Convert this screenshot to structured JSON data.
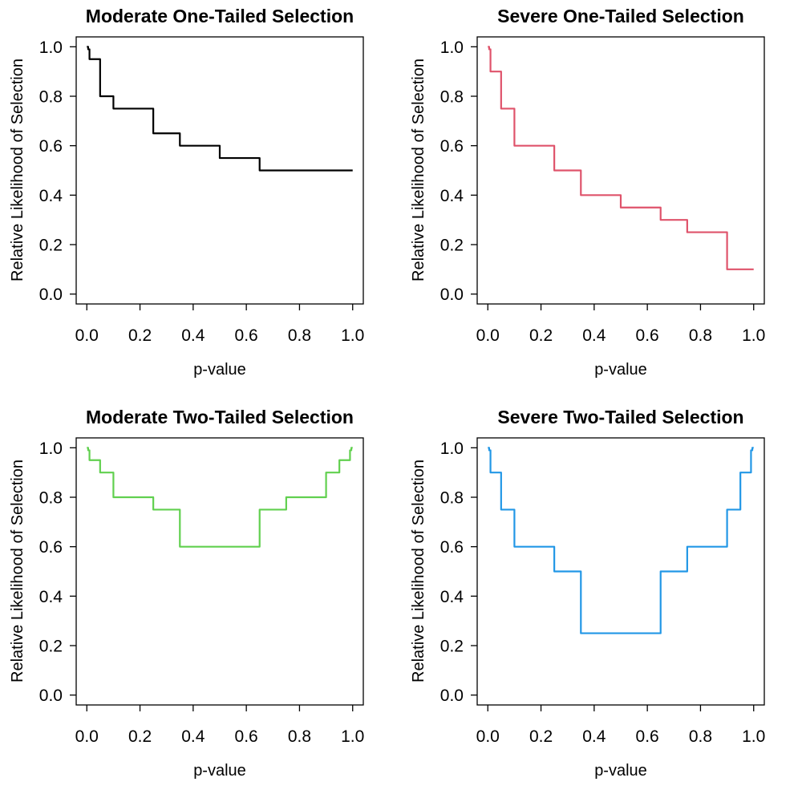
{
  "figure": {
    "background": "#ffffff",
    "layout": "2x2-grid",
    "axis_color": "#000000"
  },
  "chart_data": [
    {
      "type": "line",
      "subtype": "step-function",
      "title": "Moderate One-Tailed Selection",
      "xlabel": "p-value",
      "ylabel": "Relative Likelihood of Selection",
      "color": "#000000",
      "xlim": [
        0.0,
        1.0
      ],
      "ylim": [
        0.0,
        1.0
      ],
      "grid": false,
      "legend": "none",
      "xtick_labels": [
        "0.0",
        "0.2",
        "0.4",
        "0.6",
        "0.8",
        "1.0"
      ],
      "ytick_labels": [
        "0.0",
        "0.2",
        "0.4",
        "0.6",
        "0.8",
        "1.0"
      ],
      "cutpoints": [
        0.005,
        0.01,
        0.05,
        0.1,
        0.25,
        0.35,
        0.5,
        0.65,
        0.75,
        0.9,
        0.95,
        0.99,
        0.995,
        1.0
      ],
      "weights": [
        1.0,
        0.99,
        0.95,
        0.8,
        0.75,
        0.65,
        0.6,
        0.55,
        0.5,
        0.5,
        0.5,
        0.5,
        0.5,
        0.5
      ]
    },
    {
      "type": "line",
      "subtype": "step-function",
      "title": "Severe One-Tailed Selection",
      "xlabel": "p-value",
      "ylabel": "Relative Likelihood of Selection",
      "color": "#DF536B",
      "xlim": [
        0.0,
        1.0
      ],
      "ylim": [
        0.0,
        1.0
      ],
      "grid": false,
      "legend": "none",
      "xtick_labels": [
        "0.0",
        "0.2",
        "0.4",
        "0.6",
        "0.8",
        "1.0"
      ],
      "ytick_labels": [
        "0.0",
        "0.2",
        "0.4",
        "0.6",
        "0.8",
        "1.0"
      ],
      "cutpoints": [
        0.005,
        0.01,
        0.05,
        0.1,
        0.25,
        0.35,
        0.5,
        0.65,
        0.75,
        0.9,
        0.95,
        0.99,
        0.995,
        1.0
      ],
      "weights": [
        1.0,
        0.99,
        0.9,
        0.75,
        0.6,
        0.5,
        0.4,
        0.35,
        0.3,
        0.25,
        0.1,
        0.1,
        0.1,
        0.1
      ]
    },
    {
      "type": "line",
      "subtype": "step-function",
      "title": "Moderate Two-Tailed Selection",
      "xlabel": "p-value",
      "ylabel": "Relative Likelihood of Selection",
      "color": "#61D04F",
      "xlim": [
        0.0,
        1.0
      ],
      "ylim": [
        0.0,
        1.0
      ],
      "grid": false,
      "legend": "none",
      "xtick_labels": [
        "0.0",
        "0.2",
        "0.4",
        "0.6",
        "0.8",
        "1.0"
      ],
      "ytick_labels": [
        "0.0",
        "0.2",
        "0.4",
        "0.6",
        "0.8",
        "1.0"
      ],
      "cutpoints": [
        0.005,
        0.01,
        0.05,
        0.1,
        0.25,
        0.35,
        0.5,
        0.65,
        0.75,
        0.9,
        0.95,
        0.99,
        0.995,
        1.0
      ],
      "weights": [
        1.0,
        0.99,
        0.95,
        0.9,
        0.8,
        0.75,
        0.6,
        0.6,
        0.75,
        0.8,
        0.9,
        0.95,
        0.99,
        1.0
      ]
    },
    {
      "type": "line",
      "subtype": "step-function",
      "title": "Severe Two-Tailed Selection",
      "xlabel": "p-value",
      "ylabel": "Relative Likelihood of Selection",
      "color": "#2297E6",
      "xlim": [
        0.0,
        1.0
      ],
      "ylim": [
        0.0,
        1.0
      ],
      "grid": false,
      "legend": "none",
      "xtick_labels": [
        "0.0",
        "0.2",
        "0.4",
        "0.6",
        "0.8",
        "1.0"
      ],
      "ytick_labels": [
        "0.0",
        "0.2",
        "0.4",
        "0.6",
        "0.8",
        "1.0"
      ],
      "cutpoints": [
        0.005,
        0.01,
        0.05,
        0.1,
        0.25,
        0.35,
        0.5,
        0.65,
        0.75,
        0.9,
        0.95,
        0.99,
        0.995,
        1.0
      ],
      "weights": [
        1.0,
        0.99,
        0.9,
        0.75,
        0.6,
        0.5,
        0.25,
        0.25,
        0.5,
        0.6,
        0.75,
        0.9,
        0.99,
        1.0
      ]
    }
  ]
}
